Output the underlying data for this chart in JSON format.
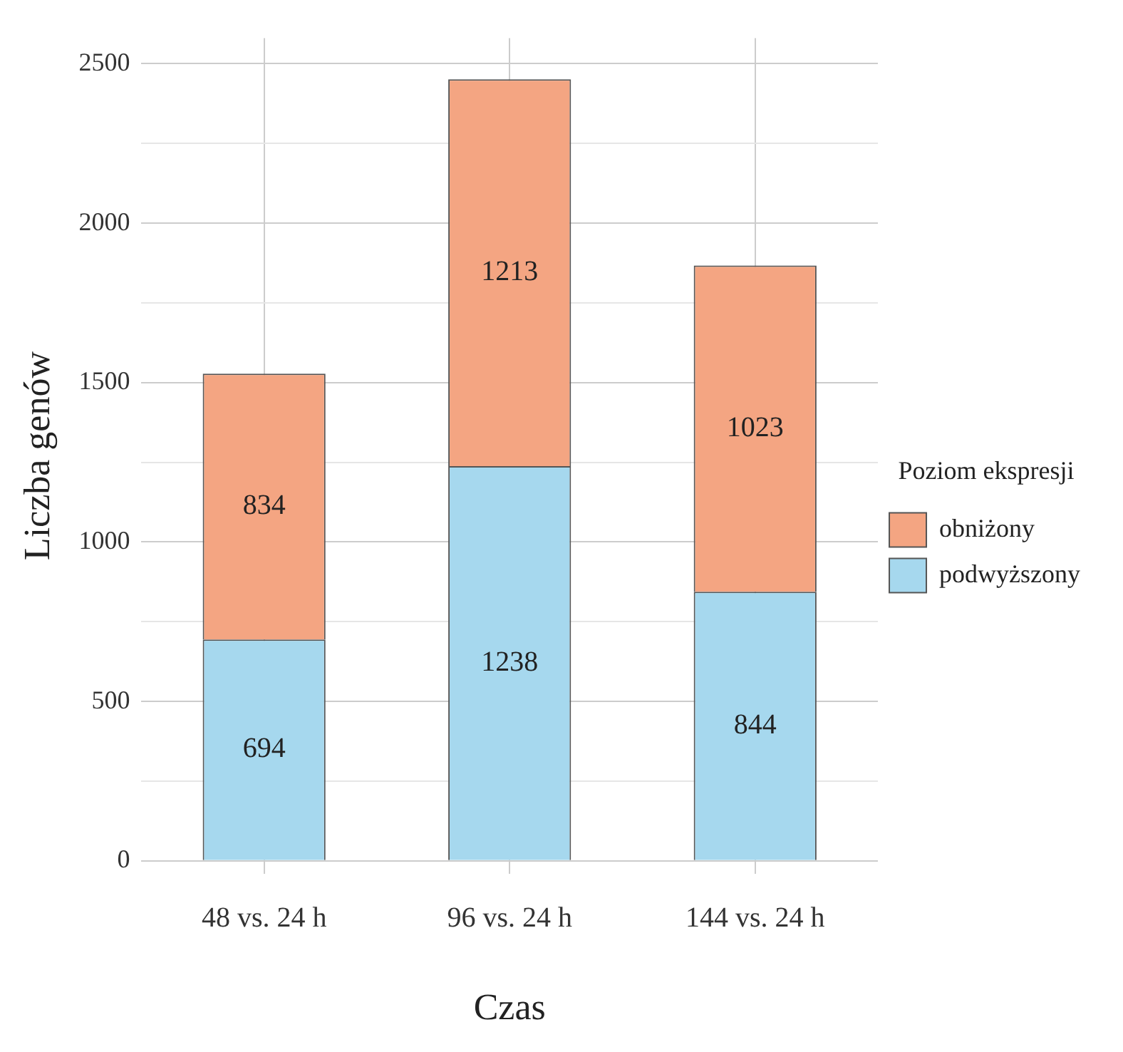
{
  "chart_data": {
    "type": "bar",
    "xlabel": "Czas",
    "ylabel": "Liczba genów",
    "legend_title": "Poziom ekspresji",
    "categories": [
      "48 vs. 24 h",
      "96 vs. 24 h",
      "144 vs. 24 h"
    ],
    "series": [
      {
        "name": "podwyższony",
        "color": "#a6d8ee",
        "values": [
          694,
          1238,
          844
        ]
      },
      {
        "name": "obniżony",
        "color": "#f4a582",
        "values": [
          834,
          1213,
          1023
        ]
      }
    ],
    "stacked": true,
    "data_labels": true,
    "grid": true,
    "legend": "right",
    "ylim": [
      -40,
      2580
    ],
    "yticks": [
      0,
      {
        "value": 250,
        "label": null
      },
      500,
      {
        "value": 750,
        "label": null
      },
      1000,
      {
        "value": 1250,
        "label": null
      },
      1500,
      {
        "value": 1750,
        "label": null
      },
      2000,
      {
        "value": 2250,
        "label": null
      },
      2500
    ]
  }
}
